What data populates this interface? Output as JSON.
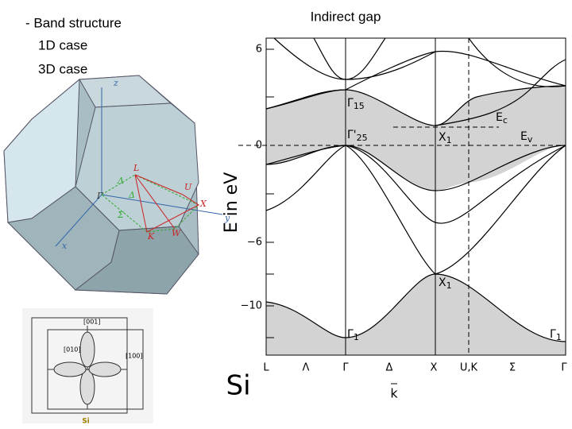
{
  "slide": {
    "bullets": [
      "- Band structure",
      "1D case",
      "3D case"
    ],
    "title": "Indirect gap",
    "material": "Si"
  },
  "band_plot": {
    "y_axis_label": "E in eV",
    "y_tick_labels": [
      "6",
      "0",
      "−6",
      "−10"
    ],
    "x_tick_labels": [
      "L",
      "Λ",
      "Γ",
      "Δ",
      "X",
      "U,K",
      "Σ",
      "Γ"
    ],
    "x_axis_label": "k",
    "annotations": [
      {
        "main": "Γ",
        "sub": "15"
      },
      {
        "main": "Γ'",
        "sub": "25"
      },
      {
        "main": "X",
        "sub": "1"
      },
      {
        "main": "E",
        "sub": "c"
      },
      {
        "main": "E",
        "sub": "v"
      },
      {
        "main": "X",
        "sub": "1"
      },
      {
        "main": "Γ",
        "sub": "1"
      },
      {
        "main": "Γ",
        "sub": "1"
      }
    ]
  },
  "brillouin_zone": {
    "axis_labels": [
      "z",
      "y",
      "x"
    ],
    "point_labels": [
      "L",
      "Λ",
      "Γ",
      "Σ",
      "Δ",
      "K",
      "W",
      "U",
      "X"
    ]
  },
  "crystal_cell": {
    "direction_labels": [
      "[001]",
      "[010]",
      "[100]"
    ],
    "caption": "Si"
  }
}
